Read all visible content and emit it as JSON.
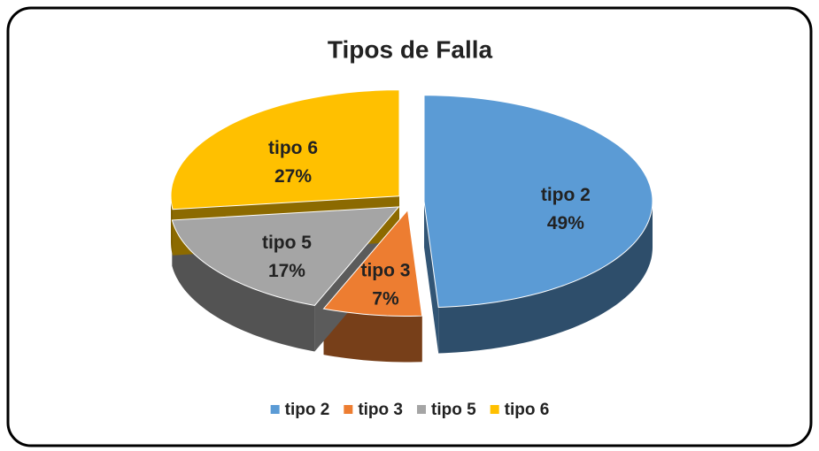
{
  "chart_data": {
    "type": "pie3d",
    "title": "Tipos de Falla",
    "categories": [
      "tipo 2",
      "tipo 3",
      "tipo 5",
      "tipo 6"
    ],
    "values": [
      49,
      7,
      17,
      27
    ],
    "value_labels": [
      "49%",
      "7%",
      "17%",
      "27%"
    ],
    "colors": [
      "#5b9bd5",
      "#ed7d31",
      "#a5a5a5",
      "#ffc000"
    ],
    "legend": "bottom"
  }
}
